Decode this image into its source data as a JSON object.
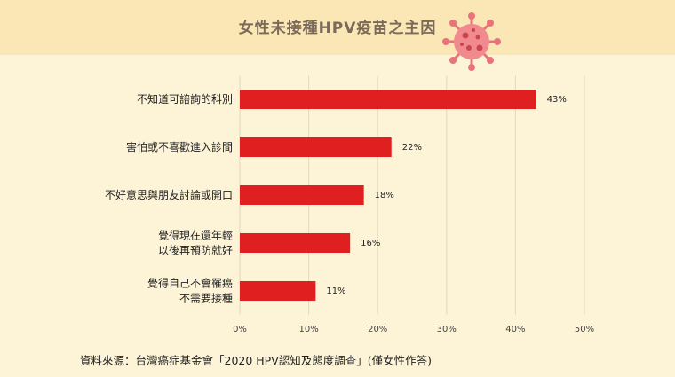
{
  "title": "女性未接種HPV疫苗之主因",
  "source": "資料來源：台灣癌症基金會「2020 HPV認知及態度調查」(僅女性作答)",
  "colors": {
    "bar": "#e02020",
    "background": "#fdf3d6",
    "header": "#fbe6b5",
    "grid": "#e3d7bd"
  },
  "chart_data": {
    "type": "bar",
    "orientation": "horizontal",
    "categories": [
      [
        "不知道可諮詢的科別"
      ],
      [
        "害怕或不喜歡進入診間"
      ],
      [
        "不好意思與朋友討論或開口"
      ],
      [
        "覺得現在還年輕",
        "以後再預防就好"
      ],
      [
        "覺得自己不會罹癌",
        "不需要接種"
      ]
    ],
    "values": [
      43,
      22,
      18,
      16,
      11
    ],
    "value_labels": [
      "43%",
      "22%",
      "18%",
      "16%",
      "11%"
    ],
    "x_ticks": [
      0,
      10,
      20,
      30,
      40,
      50
    ],
    "x_tick_labels": [
      "0%",
      "10%",
      "20%",
      "30%",
      "40%",
      "50%"
    ],
    "xlim": [
      0,
      50
    ],
    "grid": "vertical"
  }
}
